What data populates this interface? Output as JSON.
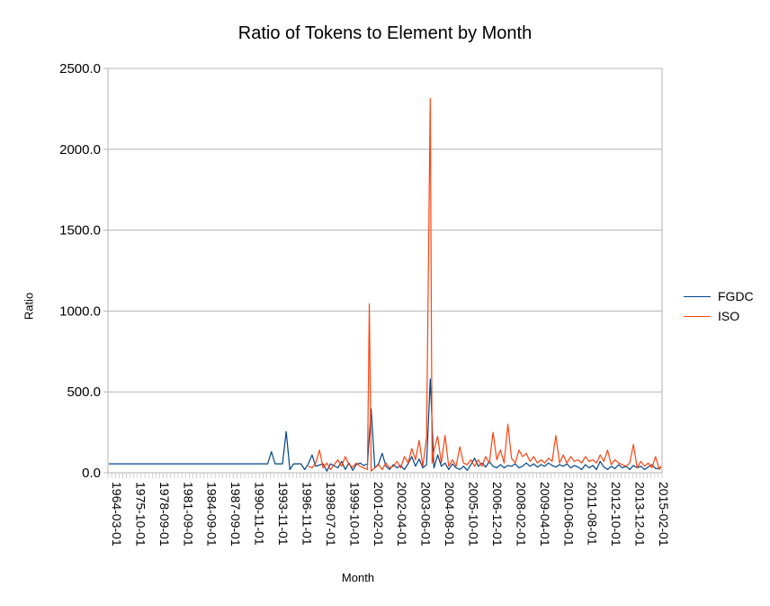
{
  "chart_data": {
    "type": "line",
    "title": "Ratio of Tokens to Element by Month",
    "xlabel": "Month",
    "ylabel": "Ratio",
    "ylim": [
      0,
      2500
    ],
    "yticks": [
      "0.0",
      "500.0",
      "1000.0",
      "1500.0",
      "2000.0",
      "2500.0"
    ],
    "xticks": [
      "1964-03-01",
      "1975-10-01",
      "1978-09-01",
      "1981-09-01",
      "1984-09-01",
      "1987-09-01",
      "1990-11-01",
      "1993-11-01",
      "1996-11-01",
      "1998-07-01",
      "1999-10-01",
      "2001-02-01",
      "2002-04-01",
      "2003-06-01",
      "2004-08-01",
      "2005-10-01",
      "2006-12-01",
      "2008-02-01",
      "2009-04-01",
      "2010-06-01",
      "2011-08-01",
      "2012-10-01",
      "2013-12-01",
      "2015-02-01"
    ],
    "category_count": 300,
    "grid": "horizontal",
    "legend_position": "right",
    "series": [
      {
        "name": "FGDC",
        "color": "#004586",
        "points": [
          [
            0,
            55
          ],
          [
            86,
            55
          ],
          [
            88,
            130
          ],
          [
            90,
            55
          ],
          [
            94,
            55
          ],
          [
            96,
            255
          ],
          [
            98,
            20
          ],
          [
            100,
            55
          ],
          [
            104,
            55
          ],
          [
            106,
            20
          ],
          [
            108,
            55
          ],
          [
            110,
            110
          ],
          [
            112,
            40
          ],
          [
            116,
            55
          ],
          [
            118,
            10
          ],
          [
            120,
            55
          ],
          [
            124,
            30
          ],
          [
            126,
            70
          ],
          [
            128,
            20
          ],
          [
            130,
            60
          ],
          [
            132,
            15
          ],
          [
            134,
            50
          ],
          [
            136,
            60
          ],
          [
            138,
            45
          ],
          [
            140,
            55
          ],
          [
            142,
            395
          ],
          [
            144,
            30
          ],
          [
            146,
            55
          ],
          [
            148,
            120
          ],
          [
            150,
            40
          ],
          [
            152,
            20
          ],
          [
            154,
            50
          ],
          [
            156,
            30
          ],
          [
            158,
            45
          ],
          [
            160,
            20
          ],
          [
            162,
            55
          ],
          [
            164,
            100
          ],
          [
            166,
            40
          ],
          [
            168,
            85
          ],
          [
            170,
            30
          ],
          [
            172,
            50
          ],
          [
            174,
            580
          ],
          [
            176,
            30
          ],
          [
            178,
            110
          ],
          [
            180,
            40
          ],
          [
            182,
            60
          ],
          [
            184,
            20
          ],
          [
            186,
            55
          ],
          [
            188,
            30
          ],
          [
            190,
            20
          ],
          [
            192,
            40
          ],
          [
            194,
            15
          ],
          [
            196,
            50
          ],
          [
            198,
            90
          ],
          [
            200,
            40
          ],
          [
            202,
            60
          ],
          [
            204,
            35
          ],
          [
            206,
            70
          ],
          [
            208,
            40
          ],
          [
            210,
            30
          ],
          [
            212,
            50
          ],
          [
            214,
            30
          ],
          [
            216,
            45
          ],
          [
            218,
            40
          ],
          [
            220,
            55
          ],
          [
            222,
            30
          ],
          [
            224,
            40
          ],
          [
            226,
            60
          ],
          [
            228,
            40
          ],
          [
            230,
            55
          ],
          [
            232,
            35
          ],
          [
            234,
            50
          ],
          [
            236,
            40
          ],
          [
            238,
            60
          ],
          [
            240,
            45
          ],
          [
            242,
            35
          ],
          [
            244,
            50
          ],
          [
            246,
            40
          ],
          [
            248,
            55
          ],
          [
            250,
            30
          ],
          [
            252,
            45
          ],
          [
            254,
            35
          ],
          [
            256,
            20
          ],
          [
            258,
            50
          ],
          [
            260,
            30
          ],
          [
            262,
            45
          ],
          [
            264,
            20
          ],
          [
            266,
            70
          ],
          [
            268,
            35
          ],
          [
            270,
            20
          ],
          [
            272,
            40
          ],
          [
            274,
            25
          ],
          [
            276,
            50
          ],
          [
            278,
            30
          ],
          [
            280,
            40
          ],
          [
            282,
            20
          ],
          [
            284,
            45
          ],
          [
            286,
            30
          ],
          [
            288,
            40
          ],
          [
            290,
            20
          ],
          [
            292,
            35
          ],
          [
            294,
            50
          ],
          [
            296,
            25
          ],
          [
            299,
            30
          ]
        ]
      },
      {
        "name": "ISO",
        "color": "#ff420e",
        "points": [
          [
            108,
            40
          ],
          [
            110,
            30
          ],
          [
            112,
            60
          ],
          [
            114,
            140
          ],
          [
            116,
            30
          ],
          [
            118,
            60
          ],
          [
            120,
            20
          ],
          [
            122,
            50
          ],
          [
            124,
            80
          ],
          [
            126,
            40
          ],
          [
            128,
            100
          ],
          [
            130,
            50
          ],
          [
            132,
            35
          ],
          [
            134,
            60
          ],
          [
            136,
            40
          ],
          [
            138,
            30
          ],
          [
            140,
            20
          ],
          [
            141,
            1045
          ],
          [
            142,
            10
          ],
          [
            144,
            30
          ],
          [
            146,
            50
          ],
          [
            148,
            20
          ],
          [
            150,
            60
          ],
          [
            152,
            30
          ],
          [
            154,
            40
          ],
          [
            156,
            70
          ],
          [
            158,
            30
          ],
          [
            160,
            100
          ],
          [
            162,
            60
          ],
          [
            164,
            150
          ],
          [
            166,
            80
          ],
          [
            168,
            200
          ],
          [
            170,
            40
          ],
          [
            172,
            220
          ],
          [
            174,
            2315
          ],
          [
            175,
            60
          ],
          [
            176,
            140
          ],
          [
            178,
            225
          ],
          [
            180,
            60
          ],
          [
            182,
            230
          ],
          [
            184,
            40
          ],
          [
            186,
            80
          ],
          [
            188,
            40
          ],
          [
            190,
            160
          ],
          [
            192,
            60
          ],
          [
            194,
            50
          ],
          [
            196,
            80
          ],
          [
            198,
            40
          ],
          [
            200,
            80
          ],
          [
            202,
            40
          ],
          [
            204,
            100
          ],
          [
            206,
            60
          ],
          [
            208,
            250
          ],
          [
            210,
            80
          ],
          [
            212,
            140
          ],
          [
            214,
            60
          ],
          [
            216,
            300
          ],
          [
            218,
            90
          ],
          [
            220,
            60
          ],
          [
            222,
            140
          ],
          [
            224,
            100
          ],
          [
            226,
            120
          ],
          [
            228,
            70
          ],
          [
            230,
            100
          ],
          [
            232,
            60
          ],
          [
            234,
            80
          ],
          [
            236,
            60
          ],
          [
            238,
            90
          ],
          [
            240,
            70
          ],
          [
            242,
            230
          ],
          [
            244,
            60
          ],
          [
            246,
            110
          ],
          [
            248,
            60
          ],
          [
            250,
            100
          ],
          [
            252,
            70
          ],
          [
            254,
            80
          ],
          [
            256,
            60
          ],
          [
            258,
            100
          ],
          [
            260,
            70
          ],
          [
            262,
            80
          ],
          [
            264,
            60
          ],
          [
            266,
            110
          ],
          [
            268,
            70
          ],
          [
            270,
            140
          ],
          [
            272,
            50
          ],
          [
            274,
            80
          ],
          [
            276,
            60
          ],
          [
            278,
            50
          ],
          [
            280,
            40
          ],
          [
            282,
            60
          ],
          [
            284,
            175
          ],
          [
            286,
            30
          ],
          [
            288,
            70
          ],
          [
            290,
            40
          ],
          [
            292,
            60
          ],
          [
            294,
            30
          ],
          [
            296,
            100
          ],
          [
            298,
            20
          ],
          [
            299,
            40
          ]
        ]
      }
    ]
  }
}
